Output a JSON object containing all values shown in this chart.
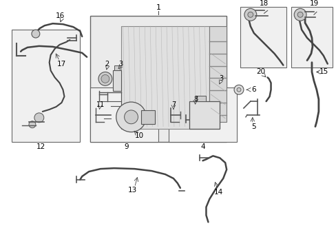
{
  "bg_color": "#ffffff",
  "gray_fill": "#e8e8e8",
  "gray_fill2": "#f0f0f0",
  "line_color": "#444444",
  "box_edge": "#666666"
}
